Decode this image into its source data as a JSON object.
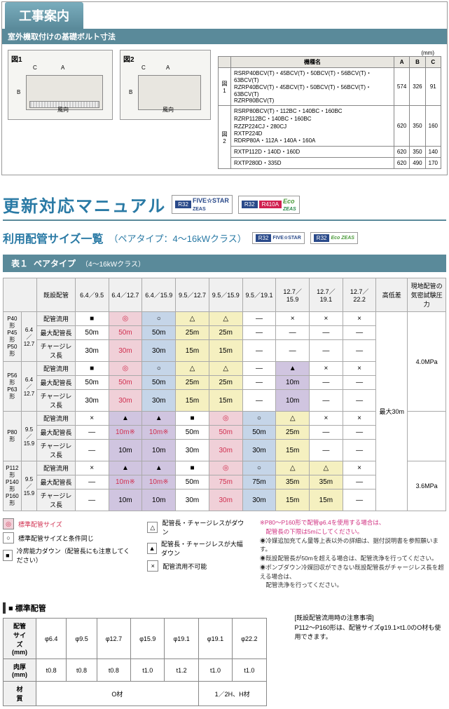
{
  "section1": {
    "title": "工事案内",
    "subtitle": "室外機取付けの基礎ボルト寸法",
    "dia1_label": "図1",
    "dia2_label": "図2",
    "mm": "(mm)",
    "spec_headers": [
      "機種名",
      "A",
      "B",
      "C"
    ],
    "spec_rows": [
      {
        "fig": "図1",
        "models": "RSRP40BCV(T)・45BCV(T)・50BCV(T)・56BCV(T)・63BCV(T)\nRZRP40BCV(T)・45BCV(T)・50BCV(T)・56BCV(T)・63BCV(T)\nRZRP80BCV(T)",
        "a": "574",
        "b": "326",
        "c": "91"
      },
      {
        "fig": "図2",
        "models": "RSRP80BCV(T)・112BC・140BC・160BC\nRZRP112BC・140BC・160BC\nRZZP224CJ・280CJ\nRXTP224D\nRDRP80A・112A・140A・160A",
        "a": "620",
        "b": "350",
        "c": "160"
      },
      {
        "fig": "",
        "models": "RXTP112D・140D・160D",
        "a": "620",
        "b": "350",
        "c": "140"
      },
      {
        "fig": "",
        "models": "RXTP280D・335D",
        "a": "620",
        "b": "490",
        "c": "170"
      }
    ]
  },
  "section2": {
    "title": "更新対応マニュアル",
    "badges": {
      "r32": "R32",
      "r410": "R410A",
      "fivestar": "FIVE☆STAR",
      "zeas": "ZEAS",
      "eco": "Eco"
    },
    "subtitle": "利用配管サイズ一覧",
    "subtitle_note": "（ペアタイプ：4～16kWクラス）",
    "table_label": "表１",
    "table_name": "ペアタイプ",
    "table_class": "（4～16kWクラス）",
    "col_existing": "既設配管",
    "cols": [
      "6.4／9.5",
      "6.4／12.7",
      "6.4／15.9",
      "9.5／12.7",
      "9.5／15.9",
      "9.5／19.1",
      "12.7／15.9",
      "12.7／19.1",
      "12.7／22.2"
    ],
    "col_height": "高低差",
    "col_pressure": "現地配管の\n気密試験圧力",
    "row_labels": [
      "配管流用",
      "最大配管長",
      "チャージレス長"
    ],
    "groups": [
      {
        "name": "P40形\nP45形\nP50形",
        "size": "6.4／12.7",
        "r1": [
          "■",
          "◎",
          "○",
          "△",
          "△",
          "—",
          "×",
          "×",
          "×"
        ],
        "r2": [
          "50m",
          "50m",
          "50m",
          "25m",
          "25m",
          "—",
          "—",
          "—",
          "—"
        ],
        "r3": [
          "30m",
          "30m",
          "30m",
          "15m",
          "15m",
          "—",
          "—",
          "—",
          "—"
        ],
        "bg": [
          "",
          "bg-pink",
          "bg-blue",
          "bg-yellow",
          "bg-yellow",
          "",
          "",
          "",
          ""
        ],
        "red1": [
          0,
          1,
          0,
          0,
          0,
          0,
          0,
          0,
          0
        ],
        "red2": [
          0,
          1,
          0,
          0,
          0,
          0,
          0,
          0,
          0
        ],
        "press": "4.0MPa"
      },
      {
        "name": "P56形\nP63形",
        "size": "6.4／12.7",
        "r1": [
          "■",
          "◎",
          "○",
          "△",
          "△",
          "—",
          "▲",
          "×",
          "×"
        ],
        "r2": [
          "50m",
          "50m",
          "50m",
          "25m",
          "25m",
          "—",
          "10m",
          "—",
          "—"
        ],
        "r3": [
          "30m",
          "30m",
          "30m",
          "15m",
          "15m",
          "—",
          "10m",
          "—",
          "—"
        ],
        "bg": [
          "",
          "bg-pink",
          "bg-blue",
          "bg-yellow",
          "bg-yellow",
          "",
          "bg-purple",
          "",
          ""
        ],
        "red1": [
          0,
          1,
          0,
          0,
          0,
          0,
          0,
          0,
          0
        ],
        "red2": [
          0,
          1,
          0,
          0,
          0,
          0,
          0,
          0,
          0
        ],
        "press": ""
      },
      {
        "name": "P80形",
        "size": "9.5／15.9",
        "r1": [
          "×",
          "▲",
          "▲",
          "■",
          "◎",
          "○",
          "△",
          "×",
          "×"
        ],
        "r2": [
          "—",
          "10m※",
          "10m※",
          "50m",
          "50m",
          "50m",
          "25m",
          "—",
          "—"
        ],
        "r3": [
          "—",
          "10m",
          "10m",
          "30m",
          "30m",
          "30m",
          "15m",
          "—",
          "—"
        ],
        "bg": [
          "",
          "bg-purple",
          "bg-purple",
          "",
          "bg-pink",
          "bg-blue",
          "bg-yellow",
          "",
          ""
        ],
        "red1": [
          0,
          1,
          1,
          0,
          1,
          0,
          0,
          0,
          0
        ],
        "red2": [
          0,
          0,
          0,
          0,
          1,
          0,
          0,
          0,
          0
        ],
        "press": ""
      },
      {
        "name": "P112形\nP140形\nP160形",
        "size": "9.5／15.9",
        "r1": [
          "×",
          "▲",
          "▲",
          "■",
          "◎",
          "○",
          "△",
          "△",
          "×"
        ],
        "r2": [
          "—",
          "10m※",
          "10m※",
          "50m",
          "75m",
          "75m",
          "35m",
          "35m",
          "—"
        ],
        "r3": [
          "—",
          "10m",
          "10m",
          "30m",
          "30m",
          "30m",
          "15m",
          "15m",
          "—"
        ],
        "bg": [
          "",
          "bg-purple",
          "bg-purple",
          "",
          "bg-pink",
          "bg-blue",
          "bg-yellow",
          "bg-yellow",
          ""
        ],
        "red1": [
          0,
          1,
          1,
          0,
          1,
          0,
          0,
          0,
          0
        ],
        "red2": [
          0,
          0,
          0,
          0,
          1,
          0,
          0,
          0,
          0
        ],
        "press": "3.6MPa"
      }
    ],
    "height_val": "最大30m",
    "legend": [
      {
        "sym": "◎",
        "bg": "bg-pink",
        "txt": "標準配管サイズ",
        "red": 1
      },
      {
        "sym": "○",
        "bg": "",
        "txt": "標準配管サイズと条件同じ",
        "red": 0
      },
      {
        "sym": "■",
        "bg": "",
        "txt": "冷房能力ダウン（配管長にも注意してください）",
        "red": 0
      }
    ],
    "legend2": [
      {
        "sym": "△",
        "bg": "",
        "txt": "配管長・チャージレスがダウン"
      },
      {
        "sym": "▲",
        "bg": "",
        "txt": "配管長・チャージレスが大幅ダウン"
      },
      {
        "sym": "×",
        "bg": "",
        "txt": "配管流用不可能"
      }
    ],
    "notes": [
      "※P80～P160形で配管φ6.4を使用する場合は、\n　配管長の下限は5mにしてください。",
      "◉冷媒追加充てん量等上表以外の詳細は、据付説明書を参照願います。",
      "◉既設配管長が50mを超える場合は、配管洗浄を行ってください。",
      "◉ポンプダウン冷媒回収ができない既設配管長がチャージレス長を超える場合は、\n　配管洗浄を行ってください。"
    ]
  },
  "section3": {
    "title": "■ 標準配管",
    "headers": [
      "配管サイズ(mm)",
      "φ6.4",
      "φ9.5",
      "φ12.7",
      "φ15.9",
      "φ19.1",
      "φ19.1",
      "φ22.2"
    ],
    "row_thick": [
      "肉厚(mm)",
      "t0.8",
      "t0.8",
      "t0.8",
      "t1.0",
      "t1.2",
      "t1.0",
      "t1.0"
    ],
    "row_mat": [
      "材　質",
      "O材",
      "1／2H、H材"
    ],
    "notes_title": "[既設配管流用時の注意事項]",
    "notes_body": "P112～P160形は、配管サイズφ19.1×t1.0のO材も使用できます。"
  }
}
